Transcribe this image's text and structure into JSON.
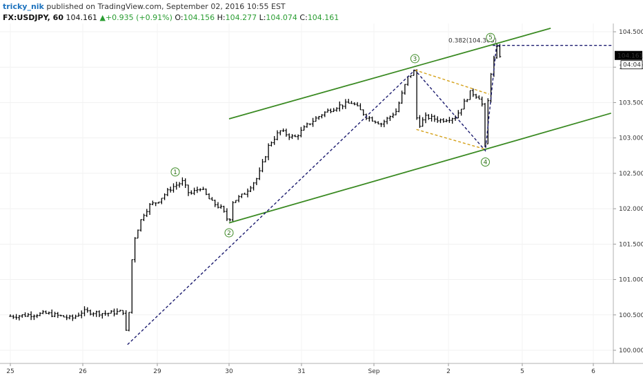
{
  "header": {
    "author": "tricky_nik",
    "published_text": "published on TradingView.com, September 02, 2016 10:55 EST",
    "symbol": "FX:USDJPY, 60",
    "last": "104.161",
    "change_arrow": "▲",
    "change": "+0.935 (+0.91%)",
    "o_label": "O:",
    "o_value": "104.156",
    "h_label": "H:",
    "h_value": "104.277",
    "l_label": "L:",
    "l_value": "104.074",
    "c_label": "C:",
    "c_value": "104.161"
  },
  "chart_data": {
    "type": "ohlc-bar",
    "symbol": "FX:USDJPY",
    "interval": "60",
    "x_axis_labels": [
      "25",
      "26",
      "29",
      "30",
      "31",
      "Sep",
      "2",
      "5",
      "6"
    ],
    "y_axis_labels": [
      "104.500",
      "104.000",
      "103.500",
      "103.000",
      "102.500",
      "102.000",
      "101.500",
      "101.000",
      "100.500",
      "100.000"
    ],
    "ylim": [
      99.95,
      104.58
    ],
    "price_label": "104.161",
    "countdown_label": "04:04",
    "fib_label": "0.382(104.308)",
    "fib_level": 104.308,
    "wave_labels": [
      "1",
      "2",
      "3",
      "4",
      "5"
    ],
    "colors": {
      "channel": "#3a8a22",
      "zigzag": "#1a1a6e",
      "triangle": "#d4a017",
      "bars": "#000000",
      "price_tag": "#000000"
    },
    "price_path": [
      [
        0,
        100.48
      ],
      [
        0.5,
        100.52
      ],
      [
        0.85,
        100.45
      ],
      [
        1.0,
        100.55
      ],
      [
        1.3,
        100.52
      ],
      [
        1.55,
        100.55
      ],
      [
        1.6,
        100.08
      ],
      [
        1.65,
        101.2
      ],
      [
        1.7,
        101.6
      ],
      [
        1.8,
        101.9
      ],
      [
        1.9,
        102.05
      ],
      [
        2.0,
        102.1
      ],
      [
        2.2,
        102.3
      ],
      [
        2.35,
        102.38
      ],
      [
        2.45,
        102.2
      ],
      [
        2.6,
        102.3
      ],
      [
        2.75,
        102.1
      ],
      [
        2.9,
        102.0
      ],
      [
        3.0,
        101.8
      ],
      [
        3.05,
        102.1
      ],
      [
        3.2,
        102.2
      ],
      [
        3.4,
        102.45
      ],
      [
        3.55,
        102.9
      ],
      [
        3.7,
        103.1
      ],
      [
        3.9,
        103.0
      ],
      [
        4.1,
        103.2
      ],
      [
        4.3,
        103.35
      ],
      [
        4.5,
        103.45
      ],
      [
        4.7,
        103.5
      ],
      [
        4.9,
        103.3
      ],
      [
        5.1,
        103.2
      ],
      [
        5.3,
        103.38
      ],
      [
        5.45,
        103.85
      ],
      [
        5.55,
        103.95
      ],
      [
        5.58,
        103.15
      ],
      [
        5.7,
        103.3
      ],
      [
        5.9,
        103.25
      ],
      [
        6.1,
        103.3
      ],
      [
        6.3,
        103.65
      ],
      [
        6.45,
        103.55
      ],
      [
        6.5,
        102.82
      ],
      [
        6.55,
        103.8
      ],
      [
        6.65,
        104.28
      ],
      [
        6.7,
        104.16
      ]
    ]
  }
}
